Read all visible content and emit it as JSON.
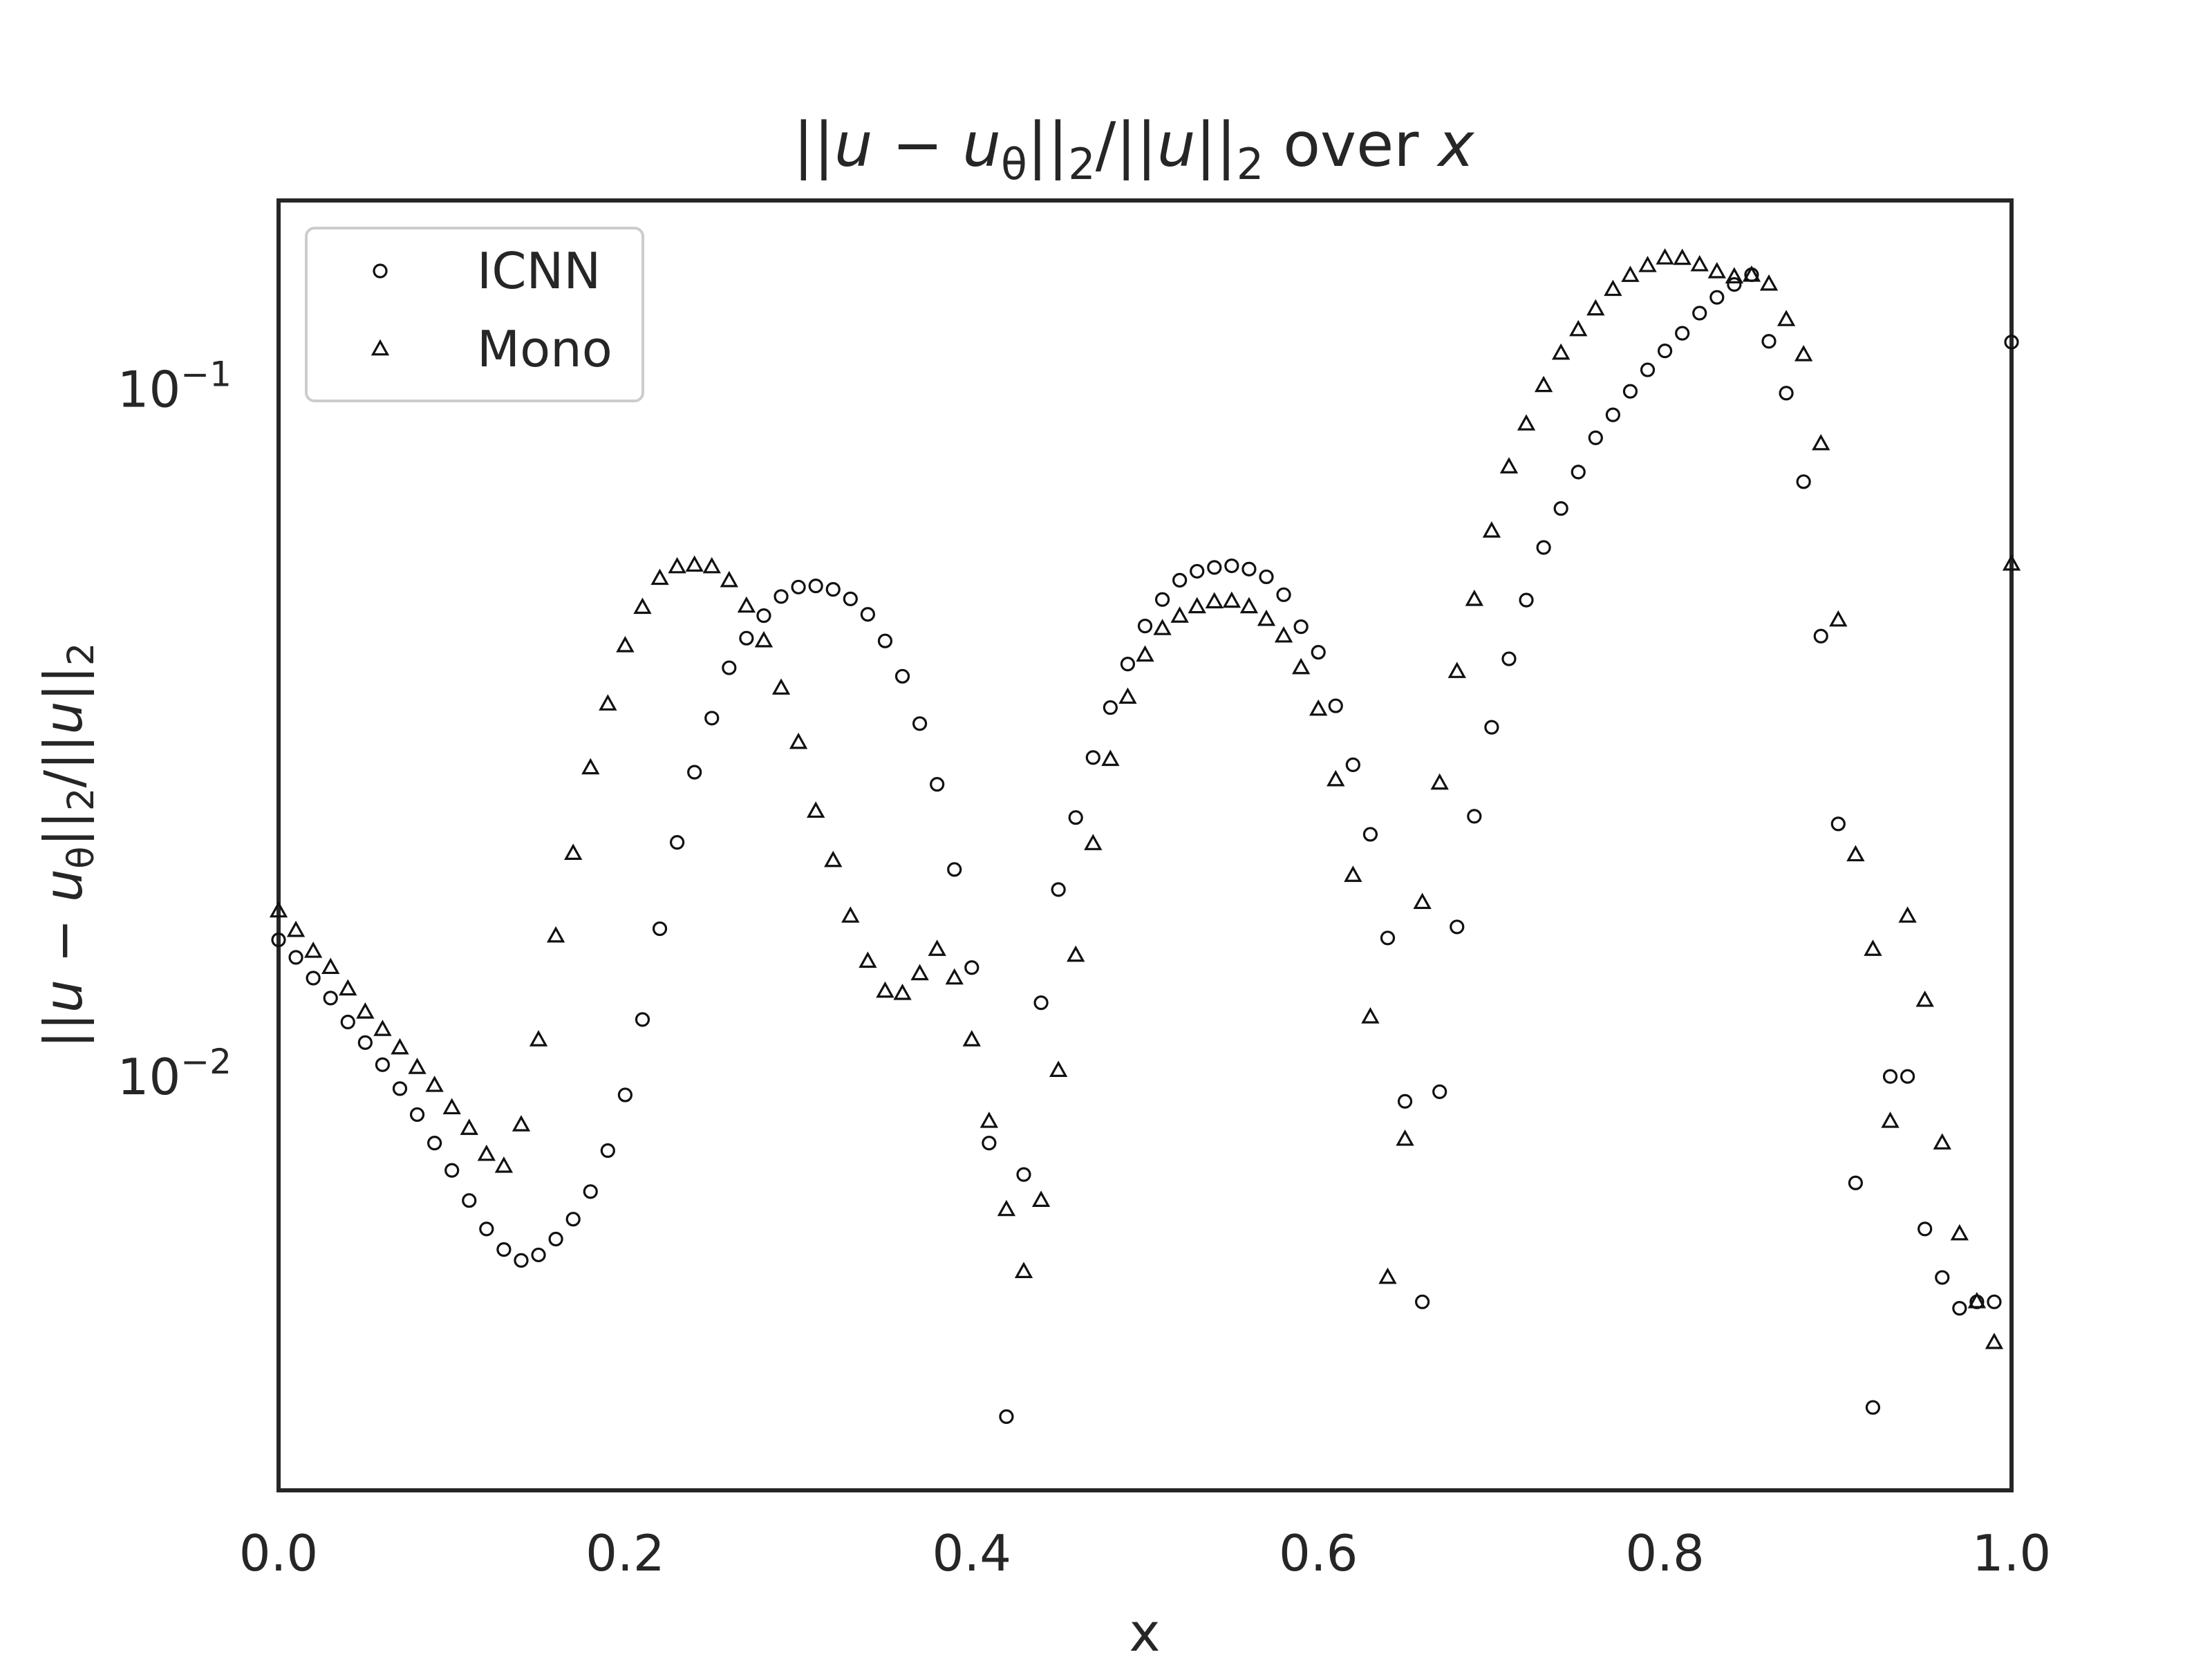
{
  "chart_data": {
    "type": "scatter",
    "title_parts": [
      "||",
      "u",
      " − ",
      "u",
      "θ",
      "||",
      "2",
      "/||",
      "u",
      "||",
      "2",
      " over ",
      "x"
    ],
    "xlabel": "x",
    "ylabel_parts": [
      "||",
      "u",
      " − ",
      "u",
      "θ",
      "||",
      "2",
      "/||",
      "u",
      "||",
      "2"
    ],
    "xlim": [
      0.0,
      1.0
    ],
    "ylim": [
      0.0025,
      0.188
    ],
    "yscale": "log",
    "x_ticks": [
      "0.0",
      "0.2",
      "0.4",
      "0.6",
      "0.8",
      "1.0"
    ],
    "y_ticks": [
      {
        "value": 0.1,
        "base": "10",
        "exp": "−1"
      },
      {
        "value": 0.01,
        "base": "10",
        "exp": "−2"
      }
    ],
    "grid": false,
    "legend": {
      "placement": "top-left"
    },
    "series": [
      {
        "name": "ICNN",
        "marker": "circle",
        "x": [
          0.0,
          0.01,
          0.02,
          0.03,
          0.04,
          0.05,
          0.06,
          0.07,
          0.08,
          0.09,
          0.1,
          0.11,
          0.12,
          0.13,
          0.14,
          0.15,
          0.16,
          0.17,
          0.18,
          0.19,
          0.2,
          0.21,
          0.22,
          0.23,
          0.24,
          0.25,
          0.26,
          0.27,
          0.28,
          0.29,
          0.3,
          0.31,
          0.32,
          0.33,
          0.34,
          0.35,
          0.36,
          0.37,
          0.38,
          0.39,
          0.4,
          0.41,
          0.42,
          0.43,
          0.44,
          0.45,
          0.46,
          0.47,
          0.48,
          0.49,
          0.5,
          0.51,
          0.52,
          0.53,
          0.54,
          0.55,
          0.56,
          0.57,
          0.58,
          0.59,
          0.6,
          0.61,
          0.62,
          0.63,
          0.64,
          0.65,
          0.66,
          0.67,
          0.68,
          0.69,
          0.7,
          0.71,
          0.72,
          0.73,
          0.74,
          0.75,
          0.76,
          0.77,
          0.78,
          0.79,
          0.8,
          0.81,
          0.82,
          0.83,
          0.84,
          0.85,
          0.86,
          0.87,
          0.88,
          0.89,
          0.9,
          0.91,
          0.92,
          0.93,
          0.94,
          0.95,
          0.96,
          0.97,
          0.98,
          0.99,
          1.0
        ],
        "y": [
          0.0158,
          0.0149,
          0.0139,
          0.013,
          0.012,
          0.0112,
          0.0104,
          0.0096,
          0.0088,
          0.008,
          0.0073,
          0.0066,
          0.006,
          0.0056,
          0.0054,
          0.0055,
          0.0058,
          0.0062,
          0.0068,
          0.0078,
          0.0094,
          0.0121,
          0.0164,
          0.0219,
          0.0277,
          0.0332,
          0.0393,
          0.0434,
          0.0468,
          0.0499,
          0.0515,
          0.0517,
          0.0511,
          0.0495,
          0.047,
          0.043,
          0.0382,
          0.0326,
          0.0266,
          0.02,
          0.0144,
          0.008,
          0.0032,
          0.0072,
          0.0128,
          0.0187,
          0.0238,
          0.0291,
          0.0344,
          0.0398,
          0.0452,
          0.0494,
          0.0527,
          0.0543,
          0.055,
          0.0553,
          0.0547,
          0.0533,
          0.0502,
          0.0451,
          0.0414,
          0.0346,
          0.0284,
          0.0225,
          0.0159,
          0.0092,
          0.0047,
          0.0095,
          0.0165,
          0.0239,
          0.0322,
          0.0405,
          0.0493,
          0.0588,
          0.067,
          0.0757,
          0.0849,
          0.0917,
          0.0992,
          0.1066,
          0.1136,
          0.1205,
          0.1289,
          0.1359,
          0.1419,
          0.1466,
          0.1173,
          0.0986,
          0.0733,
          0.0437,
          0.0233,
          0.007,
          0.0033,
          0.01,
          0.01,
          0.006,
          0.0051,
          0.0046,
          0.0047,
          0.0047,
          0.117
        ]
      },
      {
        "name": "Mono",
        "marker": "triangle",
        "x": [
          0.0,
          0.01,
          0.02,
          0.03,
          0.04,
          0.05,
          0.06,
          0.07,
          0.08,
          0.09,
          0.1,
          0.11,
          0.12,
          0.13,
          0.14,
          0.15,
          0.16,
          0.17,
          0.18,
          0.19,
          0.2,
          0.21,
          0.22,
          0.23,
          0.24,
          0.25,
          0.26,
          0.27,
          0.28,
          0.29,
          0.3,
          0.31,
          0.32,
          0.33,
          0.34,
          0.35,
          0.36,
          0.37,
          0.38,
          0.39,
          0.4,
          0.41,
          0.42,
          0.43,
          0.44,
          0.45,
          0.46,
          0.47,
          0.48,
          0.49,
          0.5,
          0.51,
          0.52,
          0.53,
          0.54,
          0.55,
          0.56,
          0.57,
          0.58,
          0.59,
          0.6,
          0.61,
          0.62,
          0.63,
          0.64,
          0.65,
          0.66,
          0.67,
          0.68,
          0.69,
          0.7,
          0.71,
          0.72,
          0.73,
          0.74,
          0.75,
          0.76,
          0.77,
          0.78,
          0.79,
          0.8,
          0.81,
          0.82,
          0.83,
          0.84,
          0.85,
          0.86,
          0.87,
          0.88,
          0.89,
          0.9,
          0.91,
          0.92,
          0.93,
          0.94,
          0.95,
          0.96,
          0.97,
          0.98,
          0.99,
          1.0
        ],
        "y": [
          0.0174,
          0.0163,
          0.0152,
          0.0144,
          0.0134,
          0.0124,
          0.0117,
          0.011,
          0.0103,
          0.0097,
          0.009,
          0.0084,
          0.0077,
          0.0074,
          0.0085,
          0.0113,
          0.016,
          0.0211,
          0.0281,
          0.0348,
          0.0423,
          0.0481,
          0.053,
          0.0551,
          0.0554,
          0.0551,
          0.0526,
          0.0483,
          0.043,
          0.0367,
          0.0306,
          0.0243,
          0.0206,
          0.0171,
          0.0147,
          0.0133,
          0.0132,
          0.0141,
          0.0153,
          0.0139,
          0.0113,
          0.0086,
          0.0064,
          0.0052,
          0.0066,
          0.0102,
          0.015,
          0.0218,
          0.0289,
          0.0356,
          0.041,
          0.0448,
          0.0467,
          0.0482,
          0.049,
          0.0491,
          0.0482,
          0.0462,
          0.0437,
          0.0393,
          0.0342,
          0.027,
          0.0196,
          0.0122,
          0.0051,
          0.0081,
          0.0179,
          0.0267,
          0.0388,
          0.0494,
          0.0621,
          0.077,
          0.0889,
          0.1011,
          0.1127,
          0.1219,
          0.1307,
          0.1395,
          0.1462,
          0.1511,
          0.155,
          0.1548,
          0.1515,
          0.148,
          0.1455,
          0.1463,
          0.142,
          0.1261,
          0.1121,
          0.0832,
          0.0461,
          0.021,
          0.0153,
          0.0086,
          0.0171,
          0.0129,
          0.008,
          0.0059,
          0.0047,
          0.0041,
          0.0556
        ]
      }
    ]
  }
}
